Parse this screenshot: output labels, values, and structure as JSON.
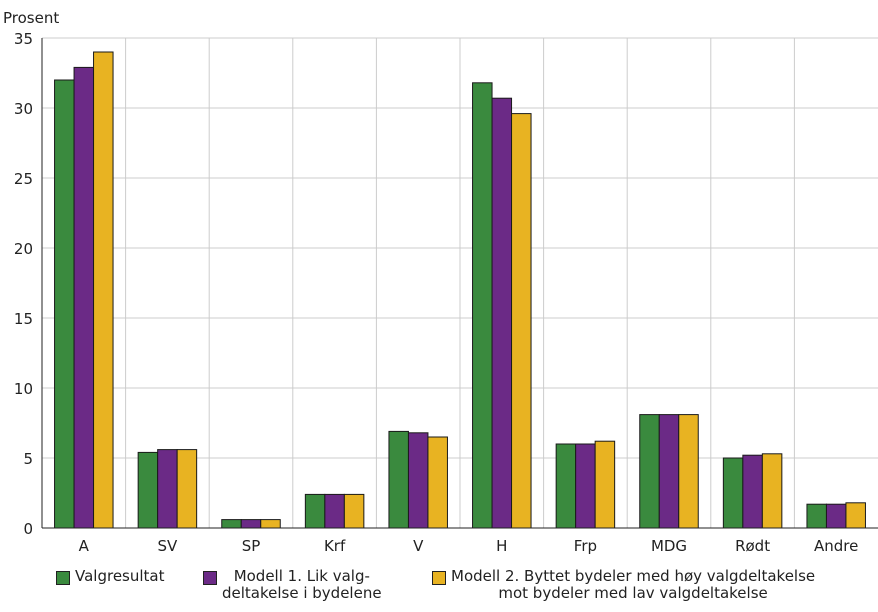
{
  "chart_data": {
    "type": "bar",
    "ylabel": "Prosent",
    "ylim": [
      0,
      35
    ],
    "yticks": [
      0,
      5,
      10,
      15,
      20,
      25,
      30,
      35
    ],
    "grid": true,
    "legend_position": "bottom",
    "categories": [
      "A",
      "SV",
      "SP",
      "Krf",
      "V",
      "H",
      "Frp",
      "MDG",
      "Rødt",
      "Andre"
    ],
    "series": [
      {
        "name": "Valgresultat",
        "color": "#3a8a3e",
        "values": [
          32.0,
          5.4,
          0.6,
          2.4,
          6.9,
          31.8,
          6.0,
          8.1,
          5.0,
          1.7
        ]
      },
      {
        "name": "Modell 1. Lik valg-deltakelse i bydelene",
        "name_lines": [
          "Modell 1. Lik valg-",
          "deltakelse i bydelene"
        ],
        "color": "#6b2a86",
        "values": [
          32.9,
          5.6,
          0.6,
          2.4,
          6.8,
          30.7,
          6.0,
          8.1,
          5.2,
          1.7
        ]
      },
      {
        "name": "Modell 2. Byttet bydeler med høy valgdeltakelse mot bydeler med lav valgdeltakelse",
        "name_lines": [
          "Modell 2. Byttet bydeler med høy valgdeltakelse",
          "mot bydeler med lav valgdeltakelse"
        ],
        "color": "#e8b322",
        "values": [
          34.0,
          5.6,
          0.6,
          2.4,
          6.5,
          29.6,
          6.2,
          8.1,
          5.3,
          1.8
        ]
      }
    ]
  }
}
